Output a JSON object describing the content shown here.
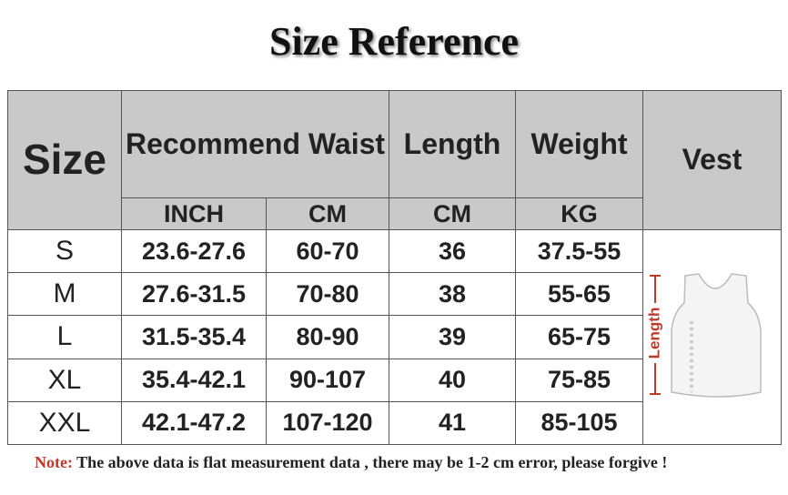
{
  "title": "Size Reference",
  "table": {
    "headers": {
      "size": "Size",
      "waist": "Recommend Waist",
      "length": "Length",
      "weight": "Weight",
      "vest": "Vest"
    },
    "units": [
      "INCH",
      "CM",
      "CM",
      "KG"
    ],
    "rows": [
      [
        "S",
        "23.6-27.6",
        "60-70",
        "36",
        "37.5-55"
      ],
      [
        "M",
        "27.6-31.5",
        "70-80",
        "38",
        "55-65"
      ],
      [
        "L",
        "31.5-35.4",
        "80-90",
        "39",
        "65-75"
      ],
      [
        "XL",
        "35.4-42.1",
        "90-107",
        "40",
        "75-85"
      ],
      [
        "XXL",
        "42.1-47.2",
        "107-120",
        "41",
        "85-105"
      ]
    ]
  },
  "vest_label": "Length",
  "note": {
    "label": "Note:",
    "text": "The above data is flat measurement data , there may be 1-2 cm error, please forgive !"
  }
}
